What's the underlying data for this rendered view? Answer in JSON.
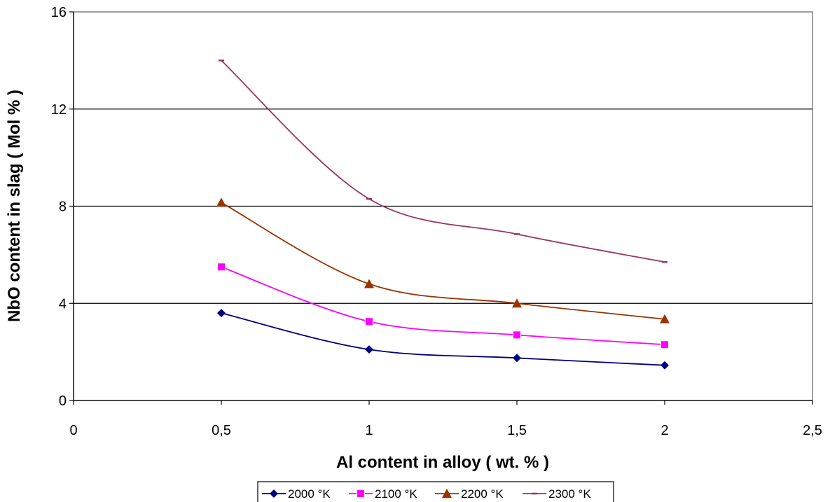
{
  "chart_data": {
    "type": "line",
    "title": "",
    "xlabel": "Al content in alloy ( wt. % )",
    "ylabel": "NbO content in slag ( Mol % )",
    "xlim": [
      0,
      2.5
    ],
    "ylim": [
      0,
      16
    ],
    "x_ticks": [
      0,
      0.5,
      1,
      1.5,
      2,
      2.5
    ],
    "x_tick_labels": [
      "0",
      "0,5",
      "1",
      "1,5",
      "2",
      "2,5"
    ],
    "y_ticks": [
      0,
      4,
      8,
      12,
      16
    ],
    "y_tick_labels": [
      "0",
      "4",
      "8",
      "12",
      "16"
    ],
    "grid": "horizontal",
    "legend_position": "bottom",
    "x": [
      0.5,
      1,
      1.5,
      2
    ],
    "series": [
      {
        "name": "2000 °K",
        "values": [
          3.6,
          2.1,
          1.75,
          1.45
        ],
        "color": "#000080",
        "marker": "diamond"
      },
      {
        "name": "2100 °K",
        "values": [
          5.5,
          3.25,
          2.7,
          2.3
        ],
        "color": "#FF00FF",
        "marker": "square"
      },
      {
        "name": "2200 °K",
        "values": [
          8.15,
          4.8,
          4.0,
          3.35
        ],
        "color": "#993300",
        "marker": "triangle"
      },
      {
        "name": "2300 °K",
        "values": [
          14.0,
          8.3,
          6.85,
          5.7
        ],
        "color": "#993366",
        "marker": "dash"
      }
    ]
  }
}
